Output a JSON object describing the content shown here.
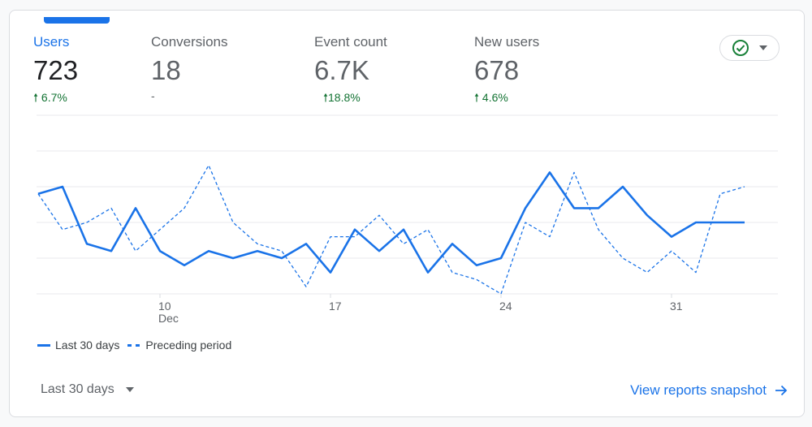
{
  "metrics": [
    {
      "label": "Users",
      "value": "723",
      "change": "6.7%",
      "direction": "up"
    },
    {
      "label": "Conversions",
      "value": "18",
      "change": "-",
      "direction": "none"
    },
    {
      "label": "Event count",
      "value": "6.7K",
      "change": "18.8%",
      "direction": "up"
    },
    {
      "label": "New users",
      "value": "678",
      "change": "4.6%",
      "direction": "up"
    }
  ],
  "compare_icon": "check-circle-icon",
  "colors": {
    "accent": "#1a73e8",
    "positive": "#137333",
    "check": "#188038"
  },
  "chart_data": {
    "type": "line",
    "x": [
      "Dec 5",
      "Dec 6",
      "Dec 7",
      "Dec 8",
      "Dec 9",
      "Dec 10",
      "Dec 11",
      "Dec 12",
      "Dec 13",
      "Dec 14",
      "Dec 15",
      "Dec 16",
      "Dec 17",
      "Dec 18",
      "Dec 19",
      "Dec 20",
      "Dec 21",
      "Dec 22",
      "Dec 23",
      "Dec 24",
      "Dec 25",
      "Dec 26",
      "Dec 27",
      "Dec 28",
      "Dec 29",
      "Dec 30",
      "Dec 31",
      "Jan 1",
      "Jan 2",
      "Jan 3"
    ],
    "tick_labels": [
      {
        "index": 5,
        "label": "10",
        "sublabel": "Dec"
      },
      {
        "index": 12,
        "label": "17"
      },
      {
        "index": 19,
        "label": "24"
      },
      {
        "index": 26,
        "label": "31"
      }
    ],
    "series": [
      {
        "name": "Last 30 days",
        "style": "solid",
        "values": [
          28,
          30,
          14,
          12,
          24,
          12,
          8,
          12,
          10,
          12,
          10,
          14,
          6,
          18,
          12,
          18,
          6,
          14,
          8,
          10,
          24,
          34,
          24,
          24,
          30,
          22,
          16,
          20,
          20,
          20
        ]
      },
      {
        "name": "Preceding period",
        "style": "dashed",
        "values": [
          28,
          18,
          20,
          24,
          12,
          18,
          24,
          36,
          20,
          14,
          12,
          2,
          16,
          16,
          22,
          14,
          18,
          6,
          4,
          0,
          20,
          16,
          34,
          18,
          10,
          6,
          12,
          6,
          28,
          30
        ]
      }
    ],
    "ylim": [
      0,
      50
    ],
    "grid": true,
    "legend": "bottom-left"
  },
  "legend": {
    "current": "Last 30 days",
    "previous": "Preceding period"
  },
  "footer": {
    "range_label": "Last 30 days",
    "link_label": "View reports snapshot"
  }
}
